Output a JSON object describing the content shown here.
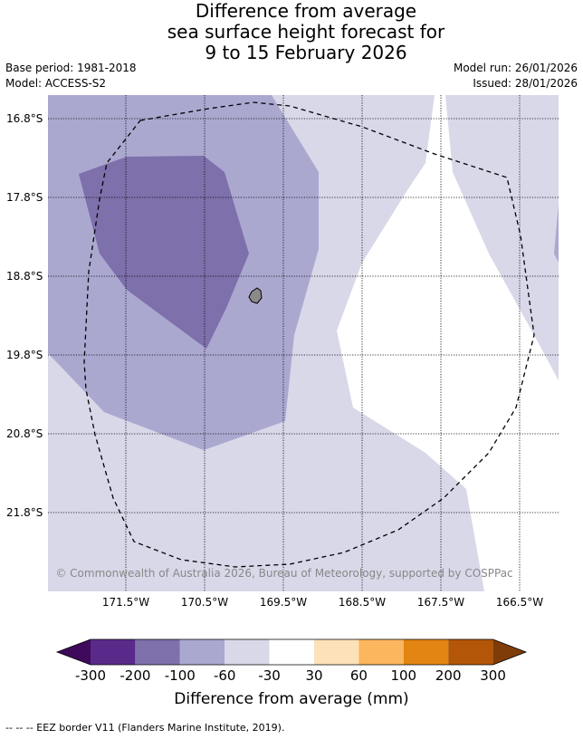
{
  "title": {
    "line1": "Difference from average",
    "line2": "sea surface height forecast for",
    "line3": "9 to 15 February 2026"
  },
  "meta": {
    "base_period": "Base period: 1981-2018",
    "model": "Model: ACCESS-S2",
    "model_run": "Model run: 26/01/2026",
    "issued": "Issued: 28/01/2026"
  },
  "map": {
    "lat_labels": [
      "16.8°S",
      "17.8°S",
      "18.8°S",
      "19.8°S",
      "20.8°S",
      "21.8°S"
    ],
    "lon_labels": [
      "171.5°W",
      "170.5°W",
      "169.5°W",
      "168.5°W",
      "167.5°W",
      "166.5°W"
    ],
    "credit": "© Commonwealth of Australia 2026, Bureau of Meteorology, supported by COSPPac"
  },
  "colorbar": {
    "colors": [
      "#3f0a5c",
      "#5a2a8a",
      "#7e70ab",
      "#aba8d0",
      "#d8d8e9",
      "#ffffff",
      "#fde1b8",
      "#fbb65e",
      "#e38513",
      "#b35607",
      "#7f3b08"
    ],
    "labels": [
      "-300",
      "-200",
      "-100",
      "-60",
      "-30",
      "30",
      "60",
      "100",
      "200",
      "300"
    ],
    "title": "Difference from average (mm)"
  },
  "footer": "--  --  -- EEZ border V11 (Flanders Marine Institute, 2019)."
}
